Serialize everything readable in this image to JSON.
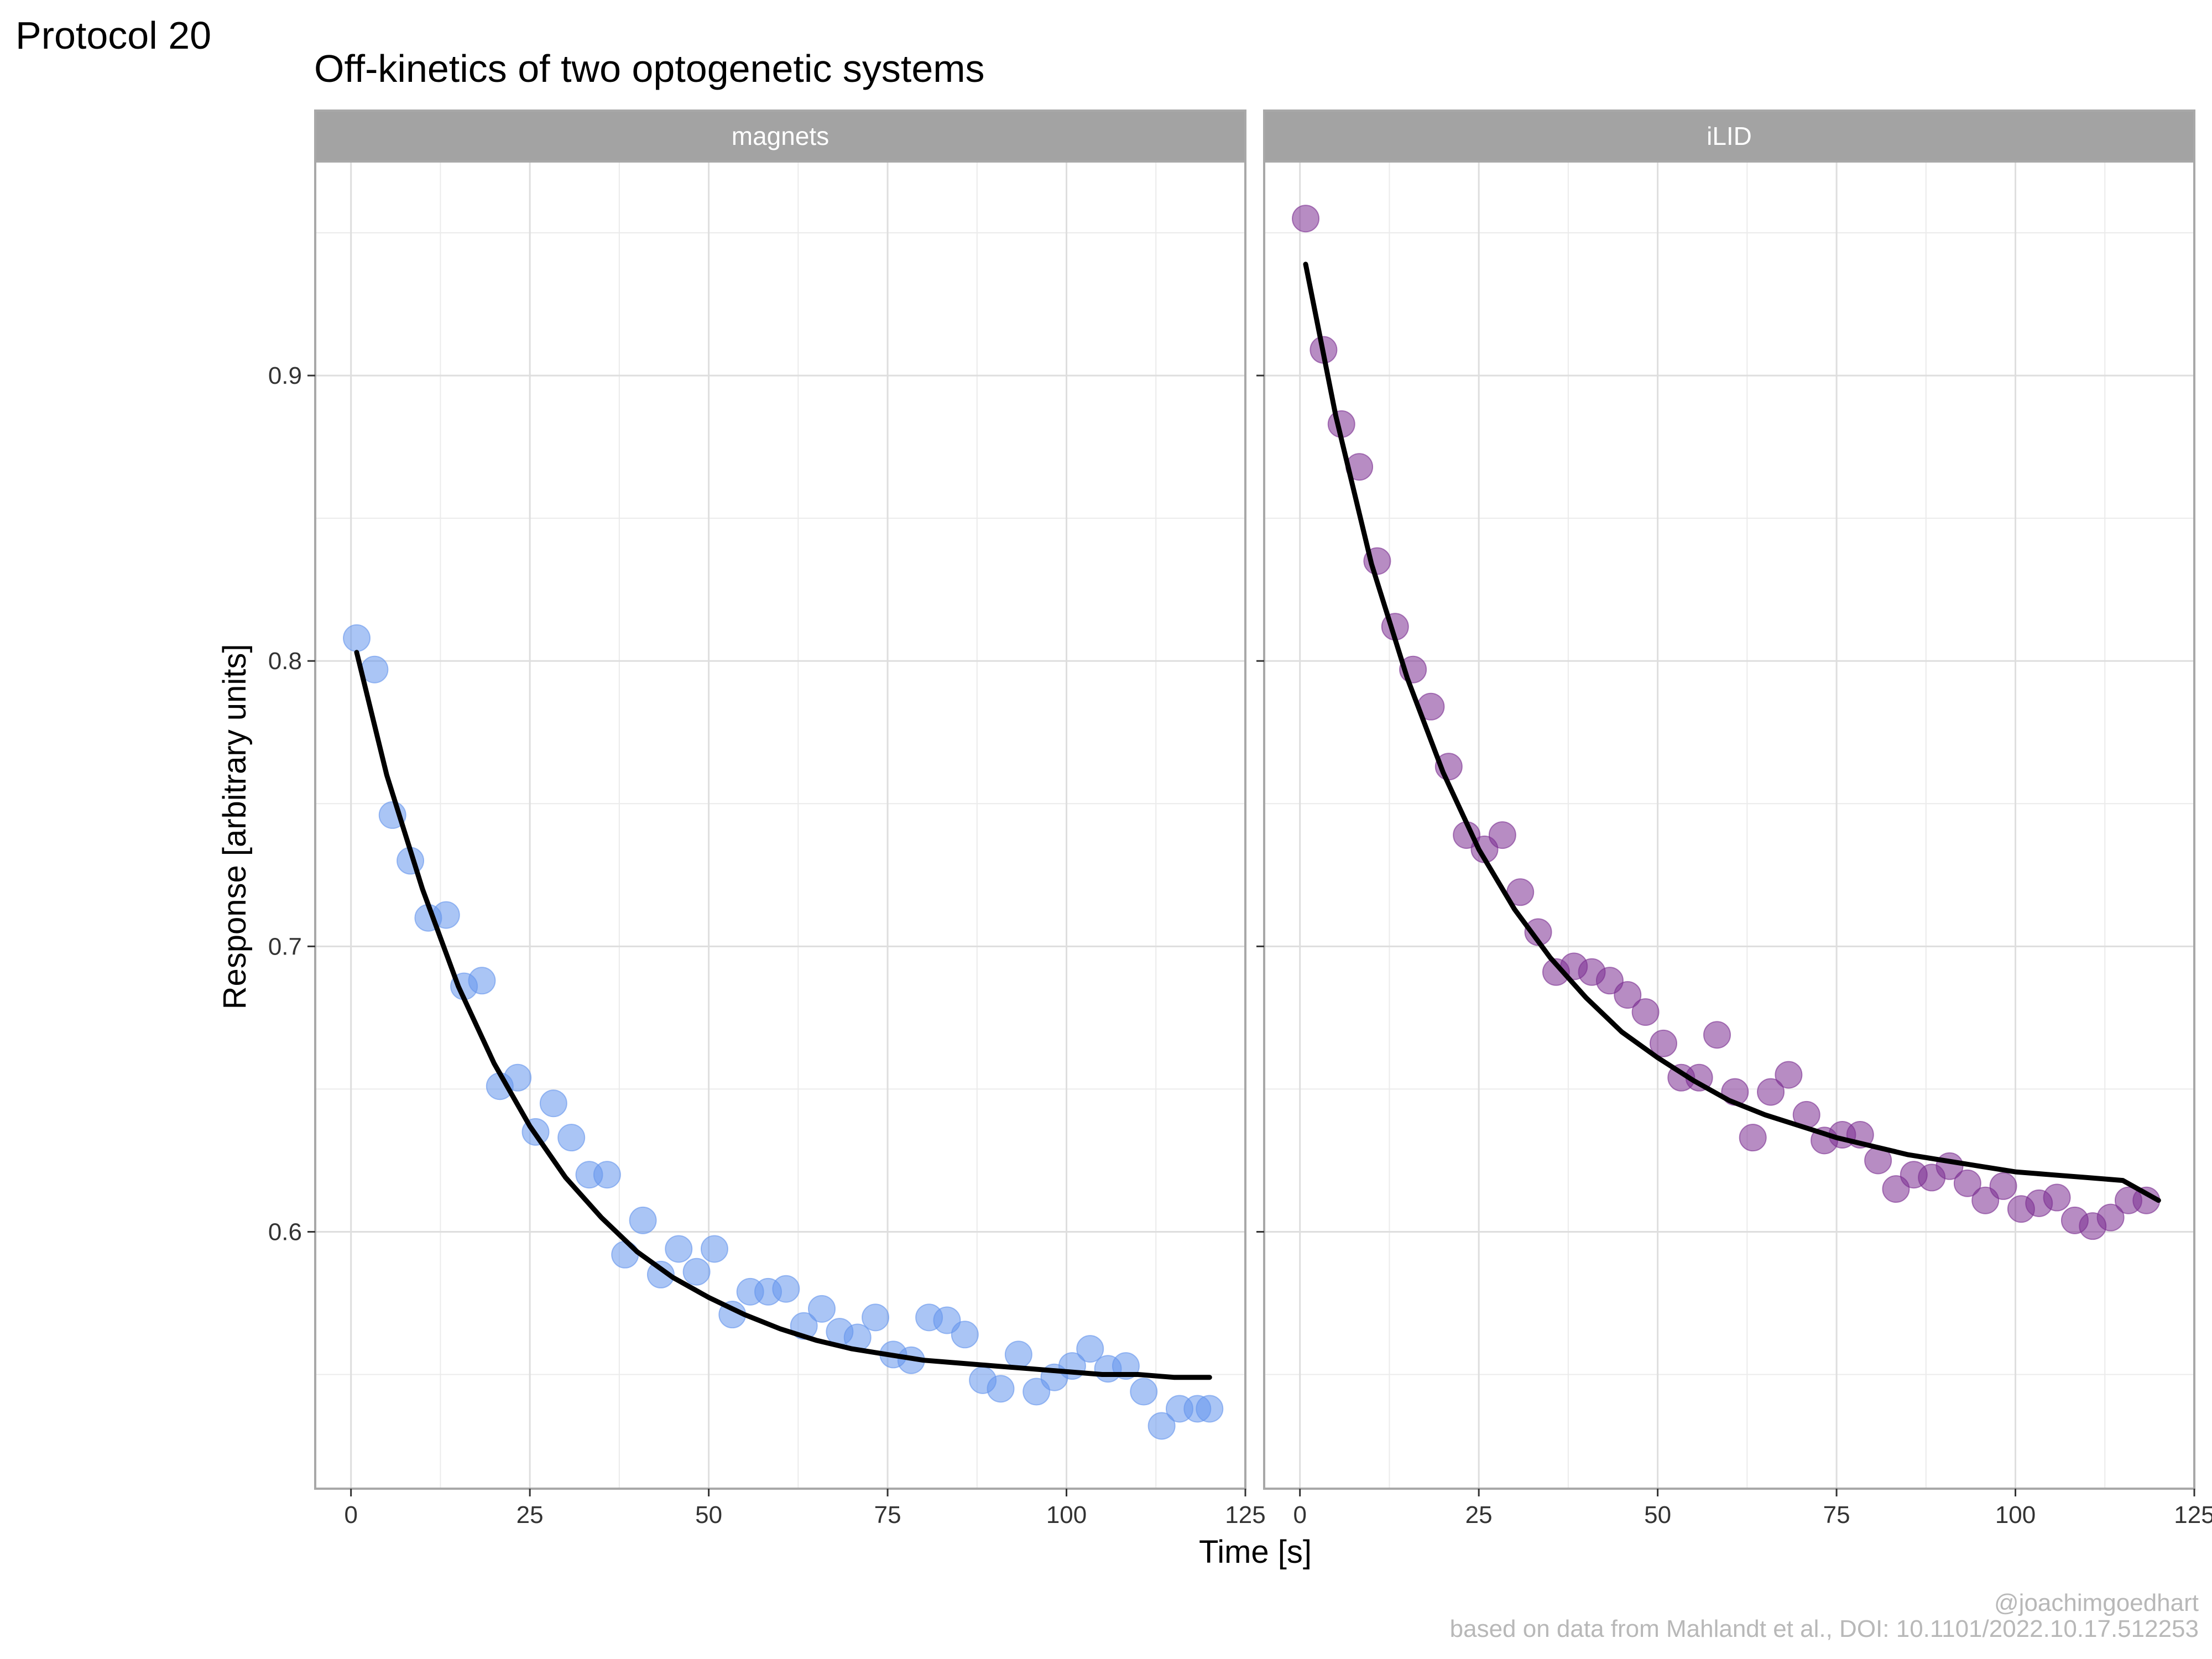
{
  "header": {
    "protocol_label": "Protocol 20",
    "title": "Off-kinetics of two optogenetic systems"
  },
  "axes": {
    "xlabel": "Time [s]",
    "ylabel": "Response [arbitrary units]"
  },
  "caption": {
    "author": "@joachimgoedhart",
    "source": "based on data from Mahlandt et al., DOI: 10.1101/2022.10.17.512253"
  },
  "colors": {
    "magnets": "#6495ED",
    "iLID": "#7B2E91",
    "fit": "#000000",
    "strip_bg": "#A3A3A3",
    "grid": "#DEDEDE"
  },
  "chart_data": {
    "type": "scatter",
    "facets": [
      "magnets",
      "iLID"
    ],
    "xlim": [
      -5,
      125
    ],
    "ylim": [
      0.51,
      0.975
    ],
    "x_ticks": [
      0,
      25,
      50,
      75,
      100,
      125
    ],
    "y_ticks": [
      0.6,
      0.7,
      0.8,
      0.9
    ],
    "grid": true,
    "series": [
      {
        "name": "magnets",
        "x": [
          0.8,
          3.3,
          5.8,
          8.3,
          10.8,
          13.3,
          15.8,
          18.3,
          20.8,
          23.3,
          25.8,
          28.3,
          30.8,
          33.3,
          35.8,
          38.3,
          40.8,
          43.3,
          45.8,
          48.3,
          50.8,
          53.3,
          55.8,
          58.3,
          60.8,
          63.3,
          65.8,
          68.3,
          70.8,
          73.3,
          75.8,
          78.3,
          80.8,
          83.3,
          85.8,
          88.3,
          90.8,
          93.3,
          95.8,
          98.3,
          100.8,
          103.3,
          105.8,
          108.3,
          110.8,
          113.3,
          115.8,
          118.3,
          120.0
        ],
        "y": [
          0.808,
          0.797,
          0.746,
          0.73,
          0.71,
          0.711,
          0.686,
          0.688,
          0.651,
          0.654,
          0.635,
          0.645,
          0.633,
          0.62,
          0.62,
          0.592,
          0.604,
          0.585,
          0.594,
          0.586,
          0.594,
          0.571,
          0.579,
          0.579,
          0.58,
          0.567,
          0.573,
          0.565,
          0.563,
          0.57,
          0.557,
          0.555,
          0.57,
          0.569,
          0.564,
          0.548,
          0.545,
          0.557,
          0.544,
          0.549,
          0.553,
          0.559,
          0.552,
          0.553,
          0.544,
          0.532,
          0.538,
          0.538,
          0.538
        ]
      },
      {
        "name": "iLID",
        "x": [
          0.8,
          3.3,
          5.8,
          8.3,
          10.8,
          13.3,
          15.8,
          18.3,
          20.8,
          23.3,
          25.8,
          28.3,
          30.8,
          33.3,
          35.8,
          38.3,
          40.8,
          43.3,
          45.8,
          48.3,
          50.8,
          53.3,
          55.8,
          58.3,
          60.8,
          63.3,
          65.8,
          68.3,
          70.8,
          73.3,
          75.8,
          78.3,
          80.8,
          83.3,
          85.8,
          88.3,
          90.8,
          93.3,
          95.8,
          98.3,
          100.8,
          103.3,
          105.8,
          108.3,
          110.8,
          113.3,
          115.8,
          118.3
        ],
        "y": [
          0.955,
          0.909,
          0.883,
          0.868,
          0.835,
          0.812,
          0.797,
          0.784,
          0.763,
          0.739,
          0.734,
          0.739,
          0.719,
          0.705,
          0.691,
          0.693,
          0.691,
          0.688,
          0.683,
          0.677,
          0.666,
          0.654,
          0.654,
          0.669,
          0.649,
          0.633,
          0.649,
          0.655,
          0.641,
          0.632,
          0.634,
          0.634,
          0.625,
          0.615,
          0.62,
          0.619,
          0.623,
          0.617,
          0.611,
          0.616,
          0.608,
          0.61,
          0.612,
          0.604,
          0.602,
          0.605,
          0.611,
          0.611
        ]
      }
    ],
    "fits": [
      {
        "facet": "magnets",
        "x": [
          0.8,
          5,
          10,
          15,
          20,
          25,
          30,
          35,
          40,
          45,
          50,
          55,
          60,
          65,
          70,
          75,
          80,
          85,
          90,
          95,
          100,
          105,
          110,
          115,
          120
        ],
        "y": [
          0.803,
          0.76,
          0.72,
          0.686,
          0.659,
          0.637,
          0.619,
          0.605,
          0.593,
          0.584,
          0.577,
          0.571,
          0.566,
          0.562,
          0.559,
          0.557,
          0.555,
          0.554,
          0.553,
          0.552,
          0.551,
          0.55,
          0.55,
          0.549,
          0.549
        ]
      },
      {
        "facet": "iLID",
        "x": [
          0.8,
          5,
          10,
          15,
          20,
          25,
          30,
          35,
          40,
          45,
          50,
          55,
          60,
          65,
          70,
          75,
          80,
          85,
          90,
          95,
          100,
          105,
          110,
          115,
          120
        ],
        "y": [
          0.939,
          0.886,
          0.834,
          0.794,
          0.761,
          0.734,
          0.713,
          0.696,
          0.682,
          0.67,
          0.661,
          0.653,
          0.646,
          0.641,
          0.637,
          0.633,
          0.63,
          0.627,
          0.625,
          0.623,
          0.621,
          0.62,
          0.619,
          0.618,
          0.611
        ]
      }
    ]
  }
}
